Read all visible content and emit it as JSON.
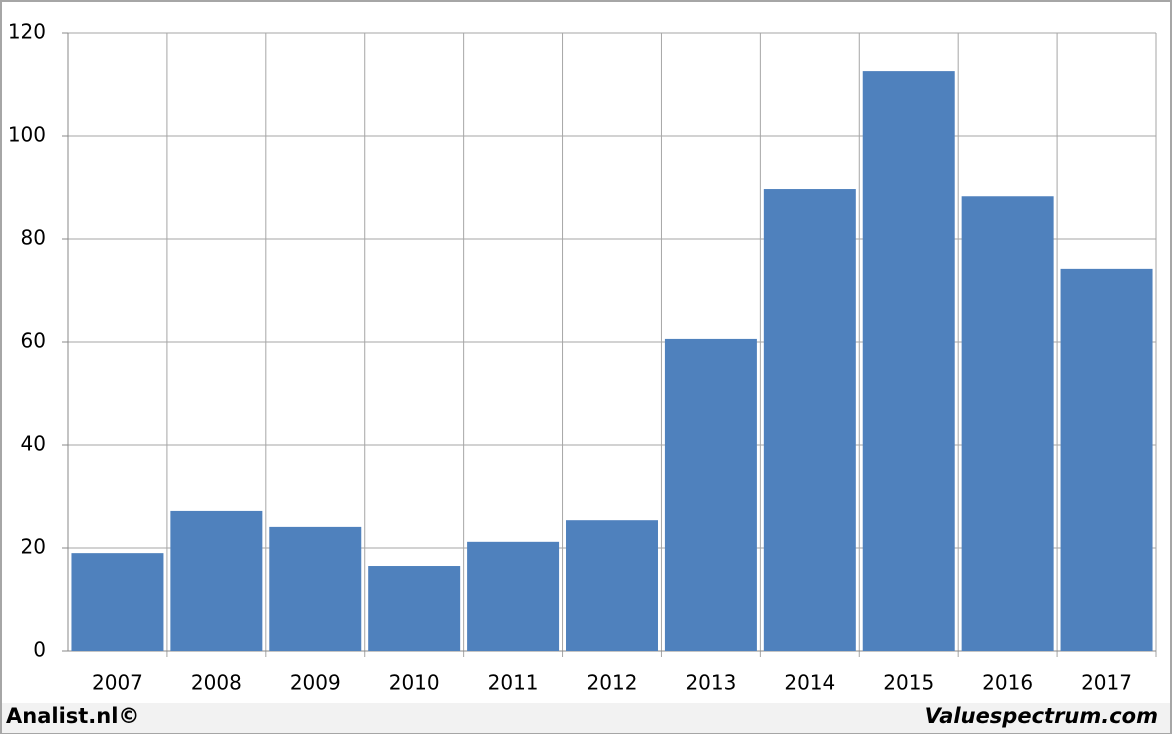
{
  "chart_data": {
    "type": "bar",
    "categories": [
      "2007",
      "2008",
      "2009",
      "2010",
      "2011",
      "2012",
      "2013",
      "2014",
      "2015",
      "2016",
      "2017"
    ],
    "values": [
      19.0,
      27.2,
      24.1,
      16.5,
      21.2,
      25.4,
      60.6,
      89.7,
      112.6,
      88.3,
      74.2
    ],
    "color": "#4f81bd",
    "ylim": [
      0,
      120
    ],
    "yticks": [
      0,
      20,
      40,
      60,
      80,
      100,
      120
    ],
    "grid": true,
    "footer_left": "Analist.nl©",
    "footer_right": "Valuespectrum.com"
  }
}
